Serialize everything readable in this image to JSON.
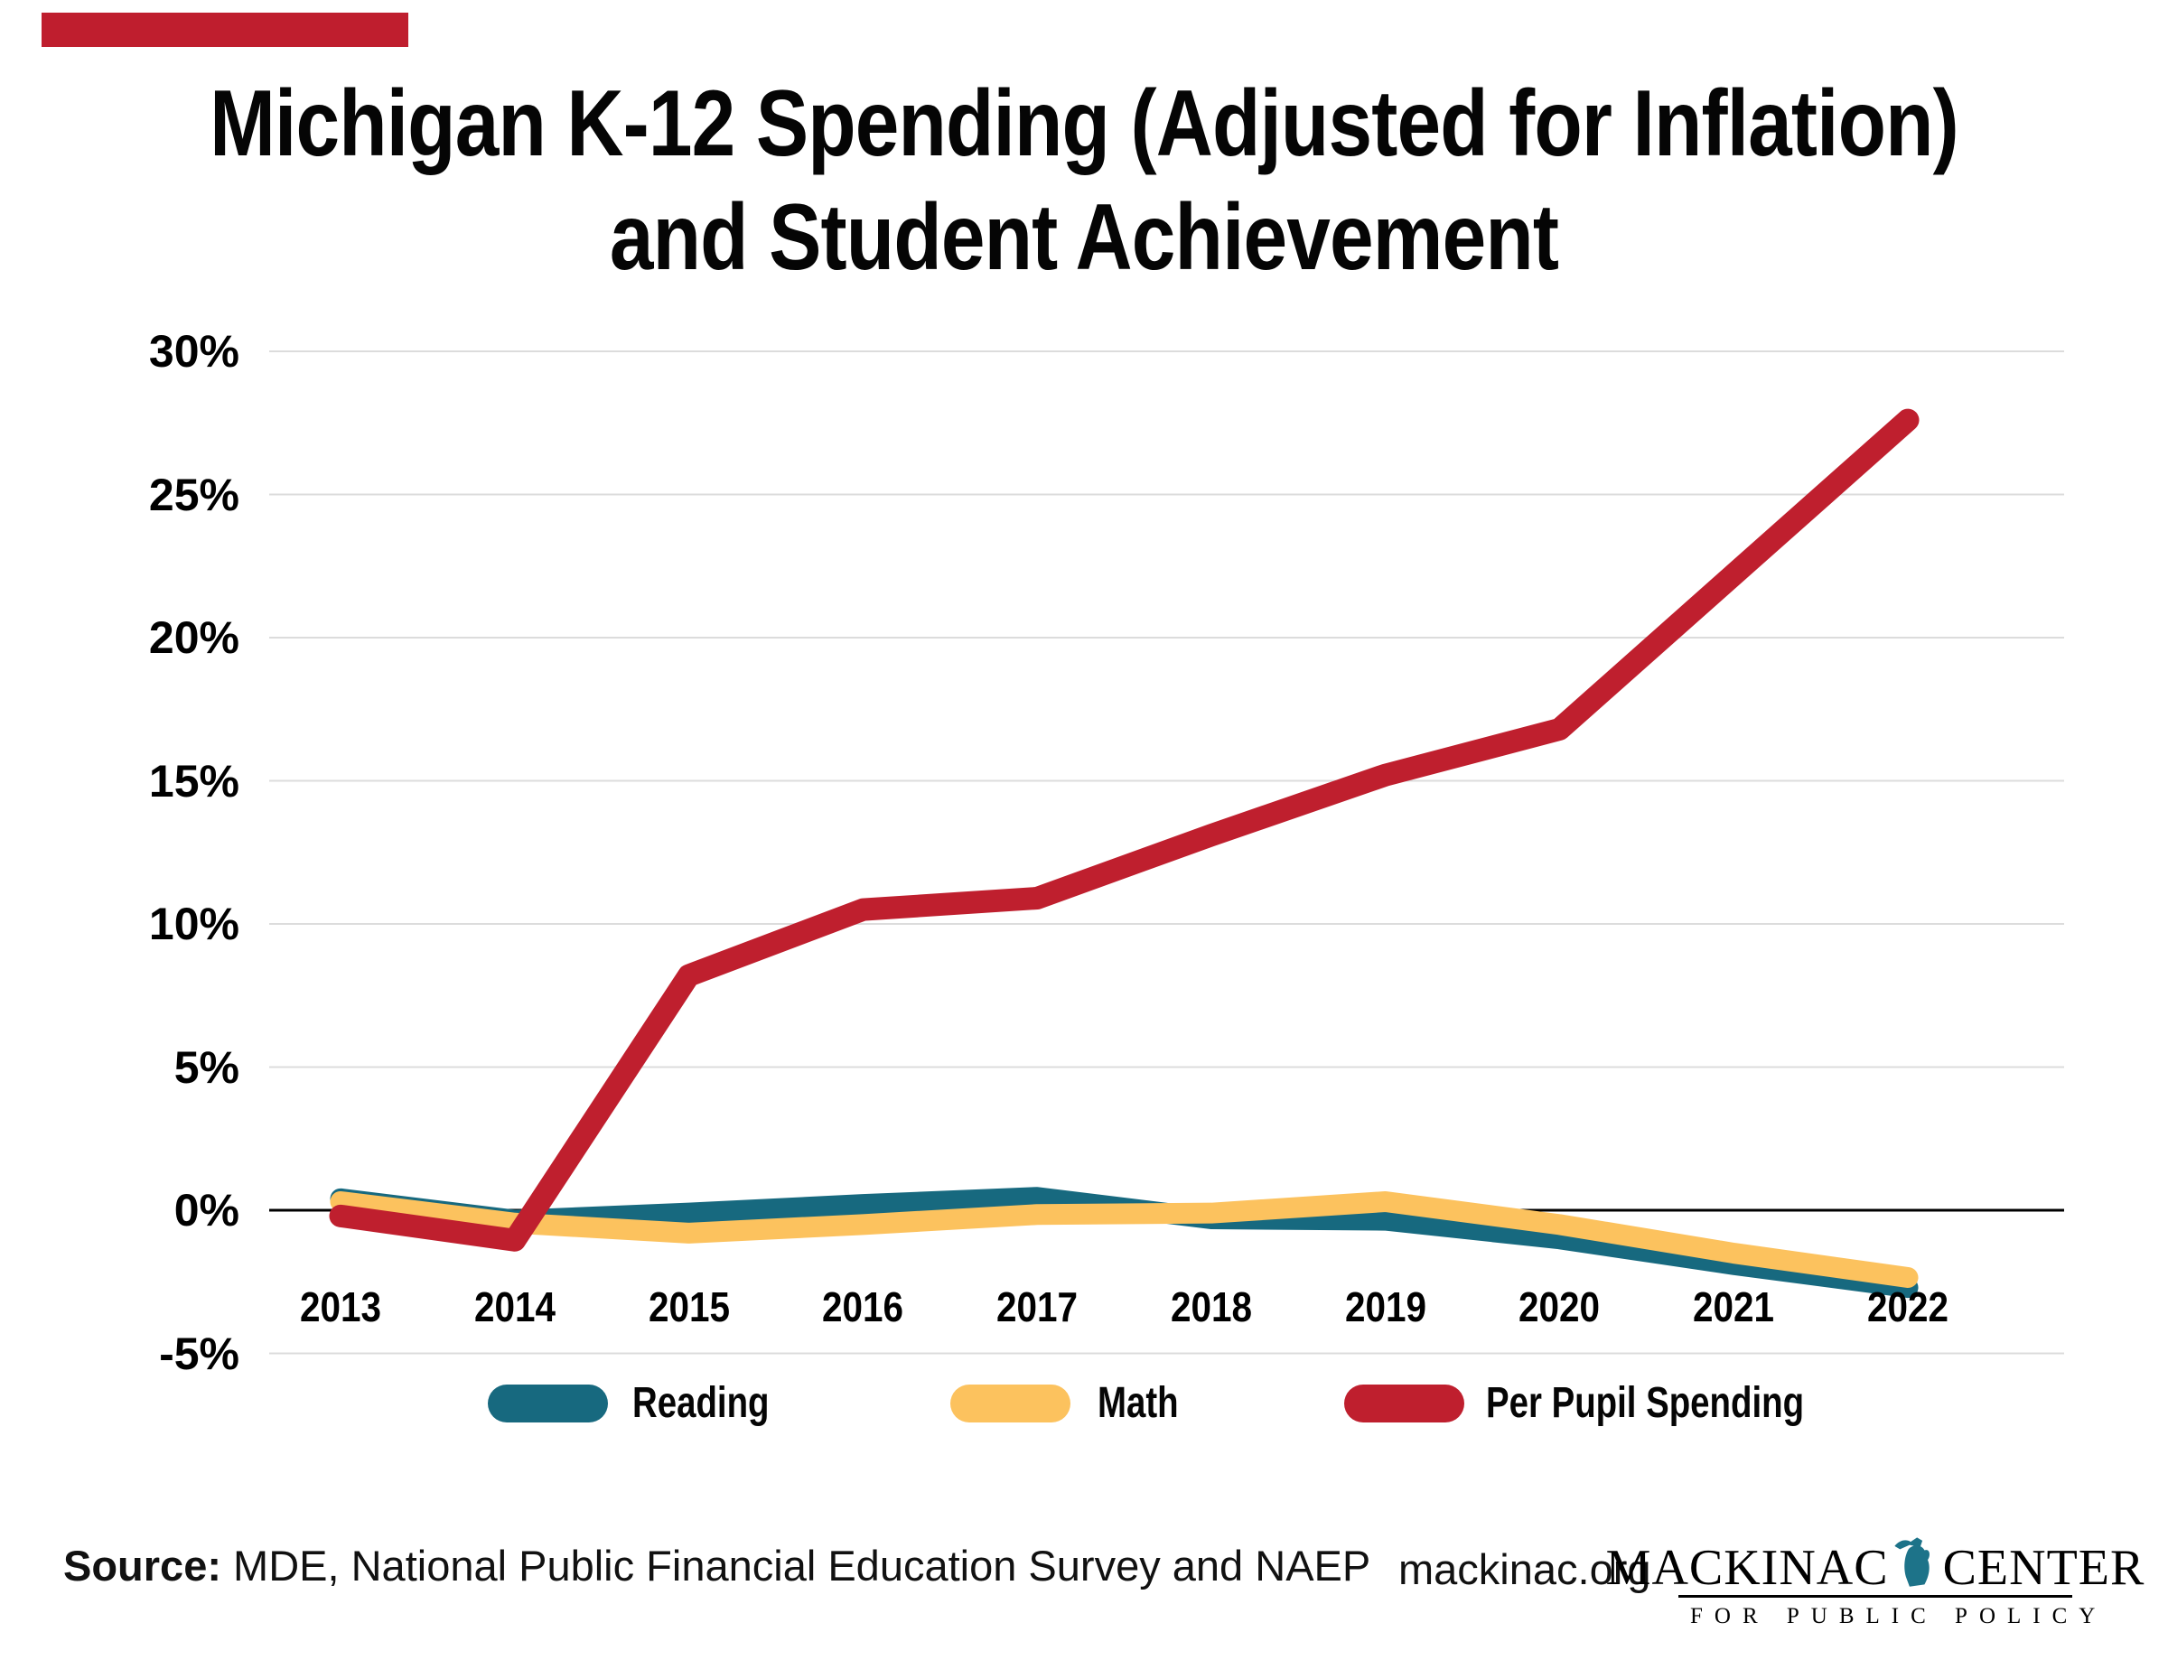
{
  "brand": {
    "accent_color": "#bf1e2e"
  },
  "title": {
    "line1": "Michigan K-12 Spending (Adjusted for Inflation)",
    "line2": "and Student Achievement"
  },
  "chart_data": {
    "type": "line",
    "title": "Michigan K-12 Spending (Adjusted for Inflation) and Student Achievement",
    "categories": [
      "2013",
      "2014",
      "2015",
      "2016",
      "2017",
      "2018",
      "2019",
      "2020",
      "2021",
      "2022"
    ],
    "series": [
      {
        "name": "Reading",
        "color": "#17697f",
        "values": [
          0.4,
          -0.35,
          -0.1,
          0.2,
          0.45,
          -0.3,
          -0.35,
          -1.0,
          -1.9,
          -2.7
        ]
      },
      {
        "name": "Math",
        "color": "#fcc25e",
        "values": [
          0.3,
          -0.45,
          -0.8,
          -0.5,
          -0.15,
          -0.1,
          0.3,
          -0.5,
          -1.5,
          -2.35
        ]
      },
      {
        "name": "Per Pupil Spending",
        "color": "#bf1f2e",
        "values": [
          -0.2,
          -1.05,
          8.2,
          10.5,
          10.9,
          13.1,
          15.2,
          16.8,
          22.2,
          27.6
        ]
      }
    ],
    "yticks": [
      {
        "label": "30%",
        "value": 30
      },
      {
        "label": "25%",
        "value": 25
      },
      {
        "label": "20%",
        "value": 20
      },
      {
        "label": "15%",
        "value": 15
      },
      {
        "label": "10%",
        "value": 10
      },
      {
        "label": "5%",
        "value": 5
      },
      {
        "label": "0%",
        "value": 0
      },
      {
        "label": "-5%",
        "value": -5
      }
    ],
    "ylim": [
      -5,
      30
    ],
    "xlabel": "",
    "ylabel": "",
    "grid": true,
    "gridline_color": "#dcdcdc",
    "zero_axis_color": "#000000",
    "legend_position": "bottom"
  },
  "legend": {
    "items": [
      {
        "label": "Reading",
        "color": "#17697f"
      },
      {
        "label": "Math",
        "color": "#fcc25e"
      },
      {
        "label": "Per Pupil Spending",
        "color": "#bf1f2e"
      }
    ]
  },
  "footer": {
    "source_label": "Source:",
    "source_text": " MDE, National Public Financial Education Survey and NAEP",
    "website": "mackinac.org",
    "logo": {
      "name_left": "MACKINAC",
      "name_right": "CENTER",
      "tagline": "FOR PUBLIC POLICY",
      "icon_color": "#1d7389"
    }
  }
}
